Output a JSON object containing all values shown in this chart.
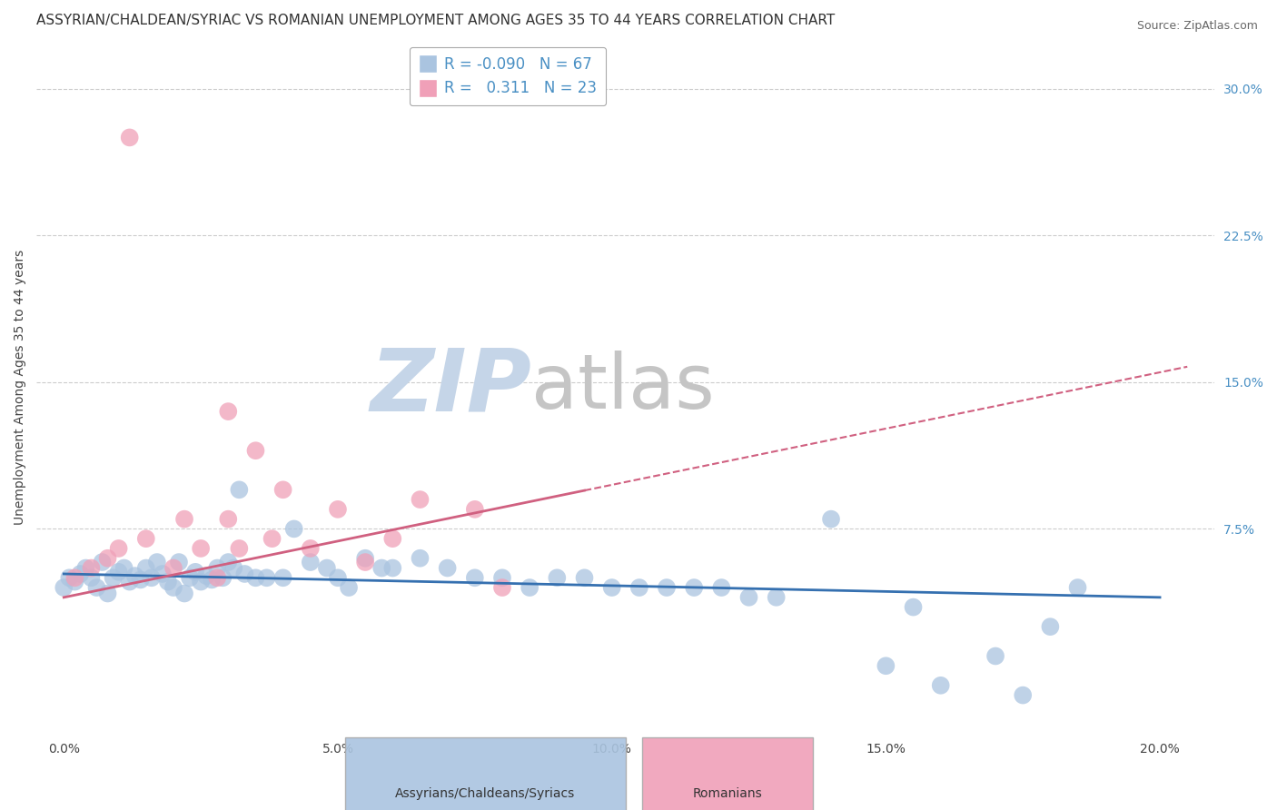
{
  "title": "ASSYRIAN/CHALDEAN/SYRIAC VS ROMANIAN UNEMPLOYMENT AMONG AGES 35 TO 44 YEARS CORRELATION CHART",
  "source": "Source: ZipAtlas.com",
  "ylabel": "Unemployment Among Ages 35 to 44 years",
  "xlabel_vals": [
    0.0,
    5.0,
    10.0,
    15.0,
    20.0
  ],
  "ylabel_right_vals": [
    30.0,
    22.5,
    15.0,
    7.5
  ],
  "xlim": [
    -0.5,
    21.0
  ],
  "ylim": [
    -3.0,
    32.5
  ],
  "blue_R": -0.09,
  "blue_N": 67,
  "pink_R": 0.311,
  "pink_N": 23,
  "blue_color": "#aac4e0",
  "pink_color": "#f0a0b8",
  "blue_line_color": "#3570b0",
  "pink_line_color": "#d06080",
  "legend_blue_label": "Assyrians/Chaldeans/Syriacs",
  "legend_pink_label": "Romanians",
  "watermark_zip": "ZIP",
  "watermark_atlas": "atlas",
  "watermark_color_zip": "#c5d5e8",
  "watermark_color_atlas": "#c5c5c5",
  "blue_scatter_x": [
    0.0,
    0.1,
    0.2,
    0.3,
    0.4,
    0.5,
    0.6,
    0.7,
    0.8,
    0.9,
    1.0,
    1.1,
    1.2,
    1.3,
    1.4,
    1.5,
    1.6,
    1.7,
    1.8,
    1.9,
    2.0,
    2.1,
    2.2,
    2.3,
    2.4,
    2.5,
    2.6,
    2.7,
    2.8,
    2.9,
    3.0,
    3.1,
    3.2,
    3.3,
    3.5,
    3.7,
    4.0,
    4.2,
    4.5,
    4.8,
    5.0,
    5.2,
    5.5,
    5.8,
    6.0,
    6.5,
    7.0,
    7.5,
    8.0,
    8.5,
    9.0,
    9.5,
    10.0,
    10.5,
    11.0,
    11.5,
    12.0,
    12.5,
    13.0,
    14.0,
    15.0,
    15.5,
    16.0,
    17.0,
    17.5,
    18.0,
    18.5
  ],
  "blue_scatter_y": [
    4.5,
    5.0,
    4.8,
    5.2,
    5.5,
    5.0,
    4.5,
    5.8,
    4.2,
    5.0,
    5.3,
    5.5,
    4.8,
    5.1,
    4.9,
    5.5,
    5.0,
    5.8,
    5.2,
    4.8,
    4.5,
    5.8,
    4.2,
    5.0,
    5.3,
    4.8,
    5.1,
    4.9,
    5.5,
    5.0,
    5.8,
    5.5,
    9.5,
    5.2,
    5.0,
    5.0,
    5.0,
    7.5,
    5.8,
    5.5,
    5.0,
    4.5,
    6.0,
    5.5,
    5.5,
    6.0,
    5.5,
    5.0,
    5.0,
    4.5,
    5.0,
    5.0,
    4.5,
    4.5,
    4.5,
    4.5,
    4.5,
    4.0,
    4.0,
    8.0,
    0.5,
    3.5,
    -0.5,
    1.0,
    -1.0,
    2.5,
    4.5
  ],
  "pink_scatter_x": [
    0.2,
    0.5,
    0.8,
    1.0,
    1.5,
    2.0,
    2.2,
    2.5,
    2.8,
    3.0,
    3.2,
    3.5,
    3.8,
    4.0,
    4.5,
    5.0,
    5.5,
    6.0,
    6.5,
    7.5,
    8.0,
    3.0,
    1.2
  ],
  "pink_scatter_y": [
    5.0,
    5.5,
    6.0,
    6.5,
    7.0,
    5.5,
    8.0,
    6.5,
    5.0,
    8.0,
    6.5,
    11.5,
    7.0,
    9.5,
    6.5,
    8.5,
    5.8,
    7.0,
    9.0,
    8.5,
    4.5,
    13.5,
    27.5
  ],
  "blue_trend_x0": 0.0,
  "blue_trend_y0": 5.2,
  "blue_trend_x1": 20.0,
  "blue_trend_y1": 4.0,
  "pink_trend_x0": 0.0,
  "pink_trend_y0": 4.0,
  "pink_trend_x1": 20.0,
  "pink_trend_y1": 15.5,
  "pink_dash_x0": 9.5,
  "pink_dash_x1": 20.5,
  "grid_color": "#cccccc",
  "bg_color": "#ffffff",
  "title_fontsize": 11,
  "axis_label_fontsize": 10,
  "tick_fontsize": 10,
  "legend_fontsize": 12
}
